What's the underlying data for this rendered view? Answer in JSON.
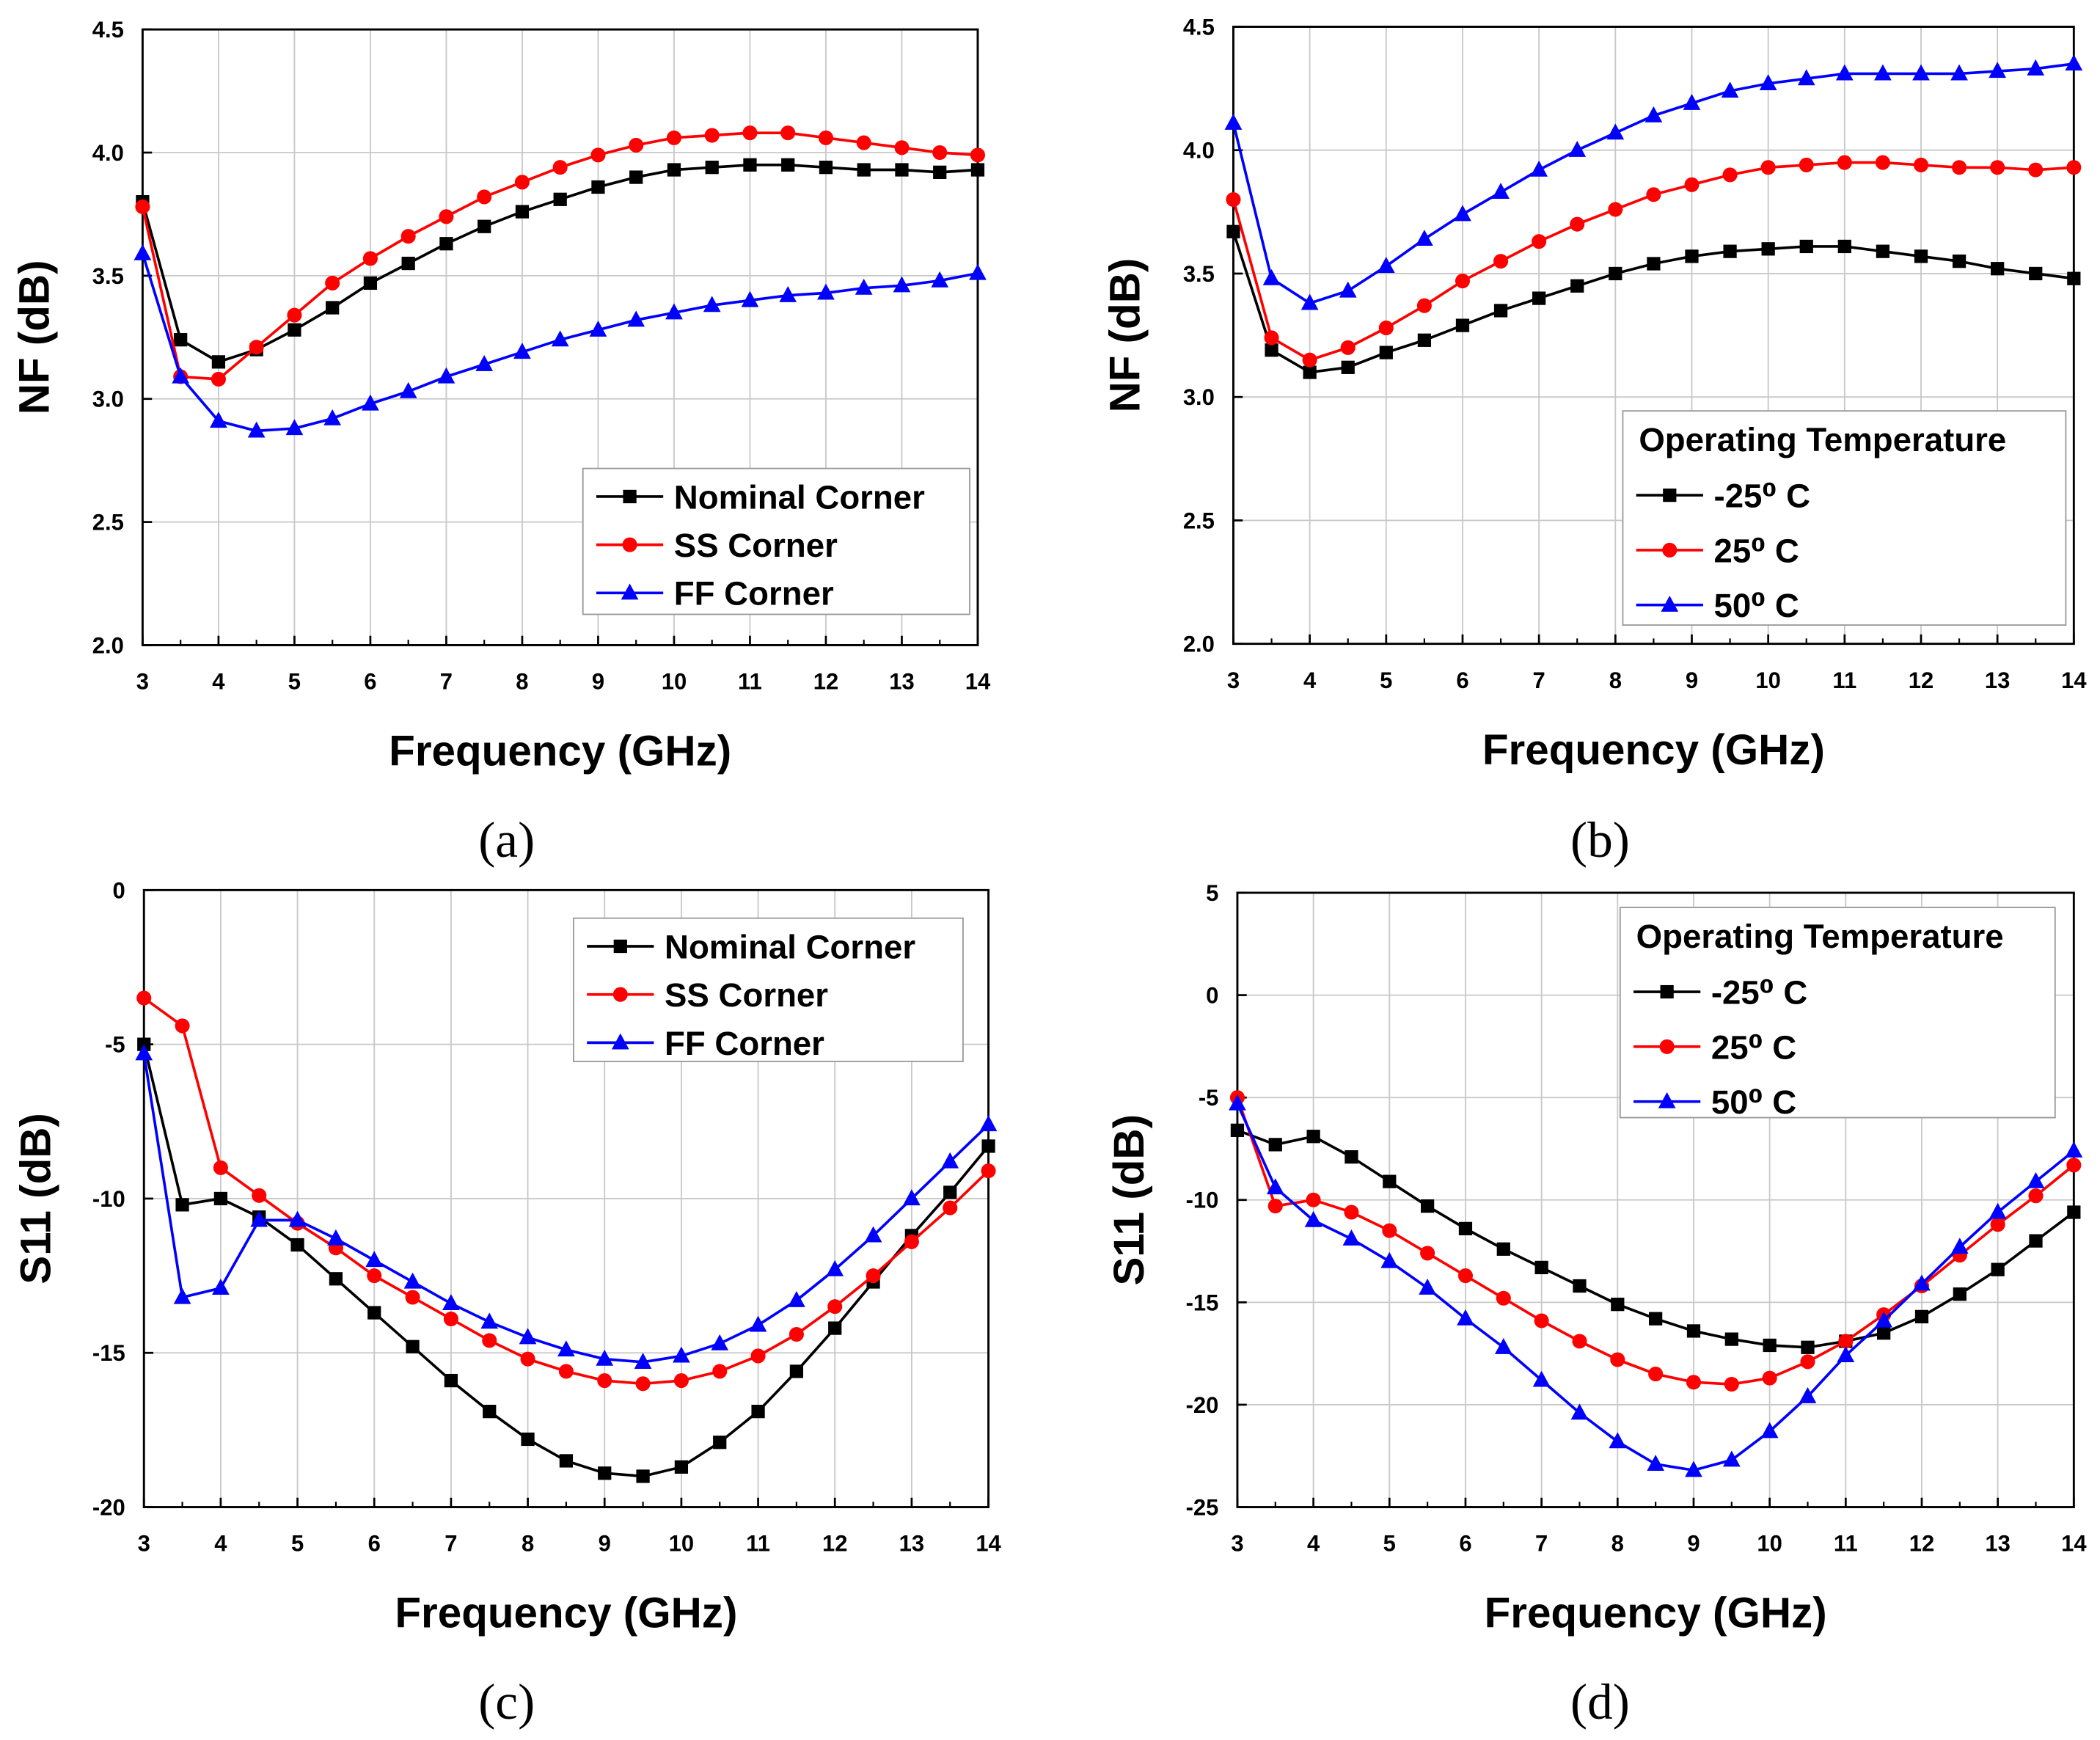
{
  "chart_data": [
    {
      "id": "a",
      "caption": "(a)",
      "type": "line",
      "xlabel": "Frequency (GHz)",
      "ylabel": "NF (dB)",
      "xlim": [
        3,
        14
      ],
      "ylim": [
        2.0,
        4.5
      ],
      "xticks": [
        "3",
        "4",
        "5",
        "6",
        "7",
        "8",
        "9",
        "10",
        "11",
        "12",
        "13",
        "14"
      ],
      "yticks": [
        "2.0",
        "2.5",
        "3.0",
        "3.5",
        "4.0",
        "4.5"
      ],
      "grid": true,
      "legend_position": "center-right",
      "legend_title": null,
      "x": [
        3,
        3.5,
        4,
        4.5,
        5,
        5.5,
        6,
        6.5,
        7,
        7.5,
        8,
        8.5,
        9,
        9.5,
        10,
        10.5,
        11,
        11.5,
        12,
        12.5,
        13,
        13.5,
        14
      ],
      "series": [
        {
          "name": "Nominal Corner",
          "color": "#000000",
          "marker": "square",
          "values": [
            3.8,
            3.24,
            3.15,
            3.2,
            3.28,
            3.37,
            3.47,
            3.55,
            3.63,
            3.7,
            3.76,
            3.81,
            3.86,
            3.9,
            3.93,
            3.94,
            3.95,
            3.95,
            3.94,
            3.93,
            3.93,
            3.92,
            3.93
          ]
        },
        {
          "name": "SS Corner",
          "color": "#ff0000",
          "marker": "circle",
          "values": [
            3.78,
            3.09,
            3.08,
            3.21,
            3.34,
            3.47,
            3.57,
            3.66,
            3.74,
            3.82,
            3.88,
            3.94,
            3.99,
            4.03,
            4.06,
            4.07,
            4.08,
            4.08,
            4.06,
            4.04,
            4.02,
            4.0,
            3.99
          ]
        },
        {
          "name": "FF Corner",
          "color": "#0000ff",
          "marker": "triangle",
          "values": [
            3.59,
            3.09,
            2.91,
            2.87,
            2.88,
            2.92,
            2.98,
            3.03,
            3.09,
            3.14,
            3.19,
            3.24,
            3.28,
            3.32,
            3.35,
            3.38,
            3.4,
            3.42,
            3.43,
            3.45,
            3.46,
            3.48,
            3.51
          ]
        }
      ]
    },
    {
      "id": "b",
      "caption": "(b)",
      "type": "line",
      "xlabel": "Frequency (GHz)",
      "ylabel": "NF (dB)",
      "xlim": [
        3,
        14
      ],
      "ylim": [
        2.0,
        4.5
      ],
      "xticks": [
        "3",
        "4",
        "5",
        "6",
        "7",
        "8",
        "9",
        "10",
        "11",
        "12",
        "13",
        "14"
      ],
      "yticks": [
        "2.0",
        "2.5",
        "3.0",
        "3.5",
        "4.0",
        "4.5"
      ],
      "grid": true,
      "legend_position": "bottom-right",
      "legend_title": "Operating Temperature",
      "x": [
        3,
        3.5,
        4,
        4.5,
        5,
        5.5,
        6,
        6.5,
        7,
        7.5,
        8,
        8.5,
        9,
        9.5,
        10,
        10.5,
        11,
        11.5,
        12,
        12.5,
        13,
        13.5,
        14
      ],
      "series": [
        {
          "name": "-25⁰ C",
          "color": "#000000",
          "marker": "square",
          "values": [
            3.67,
            3.19,
            3.1,
            3.12,
            3.18,
            3.23,
            3.29,
            3.35,
            3.4,
            3.45,
            3.5,
            3.54,
            3.57,
            3.59,
            3.6,
            3.61,
            3.61,
            3.59,
            3.57,
            3.55,
            3.52,
            3.5,
            3.48
          ]
        },
        {
          "name": "25⁰ C",
          "color": "#ff0000",
          "marker": "circle",
          "values": [
            3.8,
            3.24,
            3.15,
            3.2,
            3.28,
            3.37,
            3.47,
            3.55,
            3.63,
            3.7,
            3.76,
            3.82,
            3.86,
            3.9,
            3.93,
            3.94,
            3.95,
            3.95,
            3.94,
            3.93,
            3.93,
            3.92,
            3.93
          ]
        },
        {
          "name": "50⁰ C",
          "color": "#0000ff",
          "marker": "triangle",
          "values": [
            4.11,
            3.48,
            3.38,
            3.43,
            3.53,
            3.64,
            3.74,
            3.83,
            3.92,
            4.0,
            4.07,
            4.14,
            4.19,
            4.24,
            4.27,
            4.29,
            4.31,
            4.31,
            4.31,
            4.31,
            4.32,
            4.33,
            4.35
          ]
        }
      ]
    },
    {
      "id": "c",
      "caption": "(c)",
      "type": "line",
      "xlabel": "Frequency (GHz)",
      "ylabel": "S11 (dB)",
      "xlim": [
        3,
        14
      ],
      "ylim": [
        -20,
        0
      ],
      "xticks": [
        "3",
        "4",
        "5",
        "6",
        "7",
        "8",
        "9",
        "10",
        "11",
        "12",
        "13",
        "14"
      ],
      "yticks": [
        "-20",
        "-15",
        "-10",
        "-5",
        "0"
      ],
      "grid": true,
      "legend_position": "top-right",
      "legend_title": null,
      "x": [
        3,
        3.5,
        4,
        4.5,
        5,
        5.5,
        6,
        6.5,
        7,
        7.5,
        8,
        8.5,
        9,
        9.5,
        10,
        10.5,
        11,
        11.5,
        12,
        12.5,
        13,
        13.5,
        14
      ],
      "series": [
        {
          "name": "Nominal Corner",
          "color": "#000000",
          "marker": "square",
          "values": [
            -5.0,
            -10.2,
            -10.0,
            -10.6,
            -11.5,
            -12.6,
            -13.7,
            -14.8,
            -15.9,
            -16.9,
            -17.8,
            -18.5,
            -18.9,
            -19.0,
            -18.7,
            -17.9,
            -16.9,
            -15.6,
            -14.2,
            -12.7,
            -11.2,
            -9.8,
            -8.3
          ]
        },
        {
          "name": "SS Corner",
          "color": "#ff0000",
          "marker": "circle",
          "values": [
            -3.5,
            -4.4,
            -9.0,
            -9.9,
            -10.8,
            -11.6,
            -12.5,
            -13.2,
            -13.9,
            -14.6,
            -15.2,
            -15.6,
            -15.9,
            -16.0,
            -15.9,
            -15.6,
            -15.1,
            -14.4,
            -13.5,
            -12.5,
            -11.4,
            -10.3,
            -9.1
          ]
        },
        {
          "name": "FF Corner",
          "color": "#0000ff",
          "marker": "triangle",
          "values": [
            -5.3,
            -13.2,
            -12.9,
            -10.7,
            -10.7,
            -11.3,
            -12.0,
            -12.7,
            -13.4,
            -14.0,
            -14.5,
            -14.9,
            -15.2,
            -15.3,
            -15.1,
            -14.7,
            -14.1,
            -13.3,
            -12.3,
            -11.2,
            -10.0,
            -8.8,
            -7.6
          ]
        }
      ]
    },
    {
      "id": "d",
      "caption": "(d)",
      "type": "line",
      "xlabel": "Frequency (GHz)",
      "ylabel": "S11 (dB)",
      "xlim": [
        3,
        14
      ],
      "ylim": [
        -25,
        5
      ],
      "xticks": [
        "3",
        "4",
        "5",
        "6",
        "7",
        "8",
        "9",
        "10",
        "11",
        "12",
        "13",
        "14"
      ],
      "yticks": [
        "-25",
        "-20",
        "-15",
        "-10",
        "-5",
        "0",
        "5"
      ],
      "grid": true,
      "legend_position": "top-right",
      "legend_title": "Operating Temperature",
      "x": [
        3,
        3.5,
        4,
        4.5,
        5,
        5.5,
        6,
        6.5,
        7,
        7.5,
        8,
        8.5,
        9,
        9.5,
        10,
        10.5,
        11,
        11.5,
        12,
        12.5,
        13,
        13.5,
        14
      ],
      "series": [
        {
          "name": "-25⁰ C",
          "color": "#000000",
          "marker": "square",
          "values": [
            -6.6,
            -7.3,
            -6.9,
            -7.9,
            -9.1,
            -10.3,
            -11.4,
            -12.4,
            -13.3,
            -14.2,
            -15.1,
            -15.8,
            -16.4,
            -16.8,
            -17.1,
            -17.2,
            -16.9,
            -16.5,
            -15.7,
            -14.6,
            -13.4,
            -12.0,
            -10.6
          ]
        },
        {
          "name": "25⁰ C",
          "color": "#ff0000",
          "marker": "circle",
          "values": [
            -5.0,
            -10.3,
            -10.0,
            -10.6,
            -11.5,
            -12.6,
            -13.7,
            -14.8,
            -15.9,
            -16.9,
            -17.8,
            -18.5,
            -18.9,
            -19.0,
            -18.7,
            -17.9,
            -16.9,
            -15.6,
            -14.2,
            -12.7,
            -11.2,
            -9.8,
            -8.3
          ]
        },
        {
          "name": "50⁰ C",
          "color": "#0000ff",
          "marker": "triangle",
          "values": [
            -5.3,
            -9.4,
            -11.0,
            -11.9,
            -13.0,
            -14.3,
            -15.8,
            -17.2,
            -18.8,
            -20.4,
            -21.8,
            -22.9,
            -23.2,
            -22.7,
            -21.3,
            -19.6,
            -17.6,
            -15.9,
            -14.1,
            -12.3,
            -10.6,
            -9.1,
            -7.6
          ]
        }
      ]
    }
  ]
}
